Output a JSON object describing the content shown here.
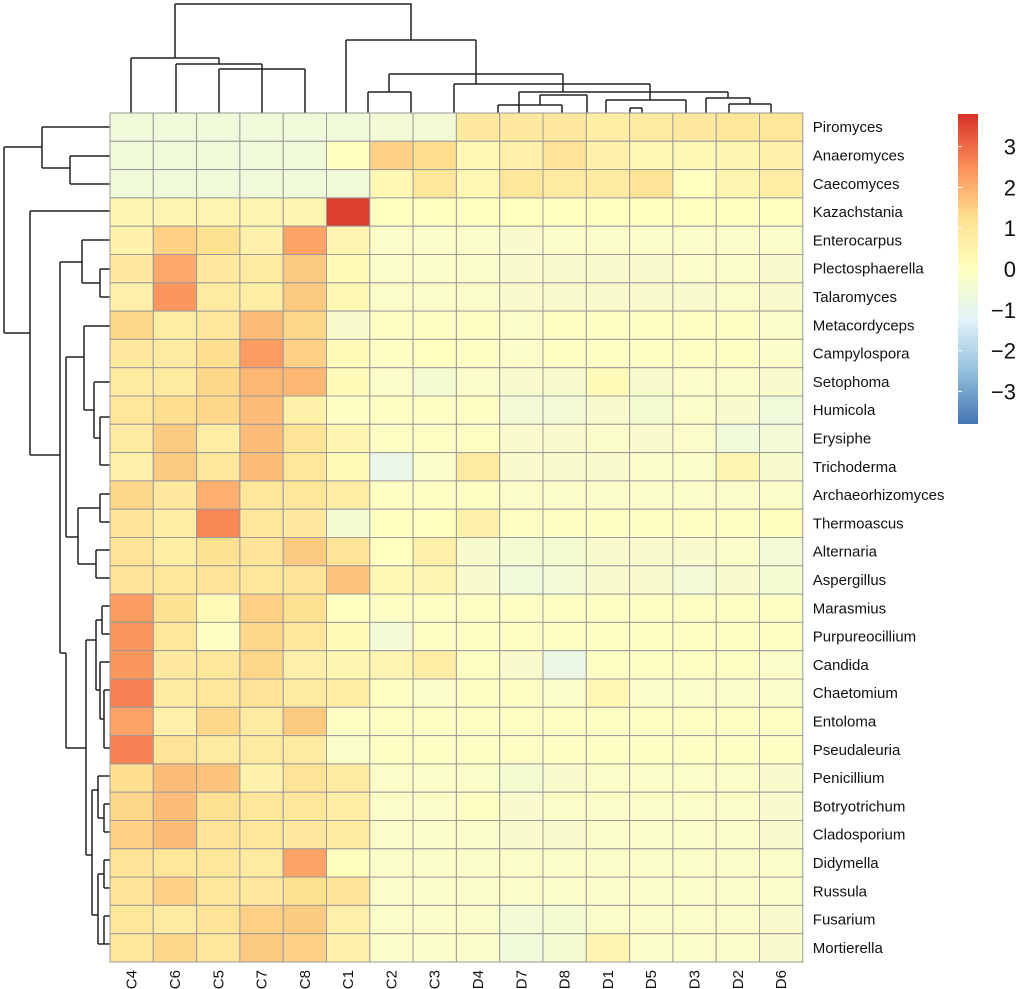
{
  "chart_data": {
    "type": "heatmap",
    "title": "",
    "columns": [
      "C4",
      "C6",
      "C5",
      "C7",
      "C8",
      "C1",
      "C2",
      "C3",
      "D4",
      "D7",
      "D8",
      "D1",
      "D5",
      "D3",
      "D2",
      "D6"
    ],
    "rows": [
      "Piromyces",
      "Anaeromyces",
      "Caecomyces",
      "Kazachstania",
      "Enterocarpus",
      "Plectosphaerella",
      "Talaromyces",
      "Metacordyceps",
      "Campylospora",
      "Setophoma",
      "Humicola",
      "Erysiphe",
      "Trichoderma",
      "Archaeorhizomyces",
      "Thermoascus",
      "Alternaria",
      "Aspergillus",
      "Marasmius",
      "Purpureocillium",
      "Candida",
      "Chaetomium",
      "Entoloma",
      "Pseudaleuria",
      "Penicillium",
      "Botryotrichum",
      "Cladosporium",
      "Didymella",
      "Russula",
      "Fusarium",
      "Mortierella"
    ],
    "values": [
      [
        -0.6,
        -0.6,
        -0.6,
        -0.6,
        -0.6,
        -0.6,
        -0.5,
        -0.5,
        0.9,
        0.9,
        0.9,
        0.7,
        0.8,
        0.9,
        1.0,
        1.0
      ],
      [
        -0.6,
        -0.6,
        -0.6,
        -0.6,
        -0.6,
        0.0,
        1.5,
        1.3,
        0.3,
        0.6,
        1.1,
        0.5,
        0.3,
        0.3,
        0.4,
        0.5
      ],
      [
        -0.6,
        -0.6,
        -0.6,
        -0.6,
        -0.6,
        -0.6,
        0.3,
        1.0,
        0.3,
        1.0,
        0.8,
        0.8,
        1.1,
        0.0,
        0.4,
        0.7
      ],
      [
        0.4,
        0.4,
        0.4,
        0.4,
        0.4,
        3.6,
        0.0,
        0.0,
        0.0,
        0.0,
        0.0,
        0.0,
        0.0,
        0.0,
        0.0,
        0.0
      ],
      [
        0.5,
        1.5,
        1.2,
        0.6,
        2.2,
        0.4,
        -0.2,
        -0.2,
        -0.2,
        -0.3,
        -0.2,
        -0.2,
        -0.2,
        -0.2,
        -0.2,
        -0.2
      ],
      [
        0.9,
        2.1,
        0.9,
        0.8,
        1.6,
        0.2,
        -0.2,
        -0.2,
        -0.2,
        -0.3,
        -0.3,
        -0.3,
        -0.3,
        -0.2,
        -0.2,
        -0.3
      ],
      [
        0.6,
        2.4,
        0.8,
        0.7,
        1.6,
        0.3,
        -0.2,
        -0.2,
        -0.2,
        -0.3,
        -0.3,
        -0.3,
        -0.3,
        -0.3,
        -0.2,
        -0.3
      ],
      [
        1.4,
        0.7,
        1.0,
        1.8,
        1.4,
        -0.3,
        -0.1,
        -0.1,
        -0.1,
        -0.2,
        -0.1,
        -0.1,
        -0.1,
        -0.1,
        -0.1,
        -0.2
      ],
      [
        0.9,
        0.8,
        1.3,
        2.3,
        1.5,
        0.2,
        -0.1,
        0.0,
        -0.1,
        -0.2,
        -0.1,
        -0.1,
        -0.1,
        -0.1,
        -0.1,
        -0.2
      ],
      [
        0.8,
        0.8,
        1.4,
        1.9,
        1.9,
        0.2,
        -0.2,
        -0.4,
        -0.2,
        -0.3,
        -0.3,
        0.2,
        -0.3,
        -0.2,
        -0.2,
        -0.3
      ],
      [
        1.0,
        1.3,
        1.4,
        1.8,
        0.5,
        -0.1,
        -0.1,
        -0.1,
        -0.1,
        -0.5,
        -0.5,
        -0.3,
        -0.4,
        -0.2,
        -0.3,
        -0.6
      ],
      [
        0.8,
        1.6,
        0.7,
        1.8,
        1.1,
        0.4,
        -0.1,
        -0.1,
        -0.1,
        -0.3,
        -0.3,
        -0.2,
        -0.3,
        -0.2,
        -0.6,
        -0.5
      ],
      [
        0.6,
        1.6,
        1.0,
        1.8,
        1.0,
        0.2,
        -0.9,
        -0.2,
        0.8,
        -0.3,
        -0.3,
        -0.3,
        -0.2,
        -0.2,
        0.4,
        -0.3
      ],
      [
        1.4,
        0.9,
        2.0,
        1.0,
        1.0,
        0.7,
        -0.1,
        -0.1,
        -0.1,
        -0.2,
        -0.2,
        -0.2,
        -0.2,
        -0.2,
        -0.2,
        -0.2
      ],
      [
        1.1,
        0.7,
        2.6,
        1.0,
        0.9,
        -0.4,
        0.0,
        0.0,
        0.5,
        -0.1,
        -0.1,
        -0.1,
        -0.1,
        -0.1,
        -0.1,
        0.1
      ],
      [
        1.1,
        0.7,
        1.2,
        1.1,
        1.6,
        1.1,
        0.0,
        0.6,
        -0.3,
        -0.4,
        -0.4,
        -0.3,
        -0.3,
        -0.3,
        -0.2,
        -0.5
      ],
      [
        1.1,
        1.0,
        1.1,
        1.0,
        1.1,
        1.7,
        0.3,
        0.4,
        -0.3,
        -0.6,
        -0.5,
        -0.3,
        -0.3,
        -0.5,
        -0.3,
        -0.4
      ],
      [
        2.3,
        1.2,
        0.2,
        1.5,
        1.2,
        0.0,
        -0.1,
        -0.1,
        -0.1,
        -0.1,
        -0.1,
        -0.1,
        -0.1,
        -0.1,
        -0.1,
        -0.1
      ],
      [
        2.4,
        1.0,
        -0.1,
        1.4,
        1.0,
        0.2,
        -0.5,
        -0.1,
        -0.1,
        -0.1,
        -0.1,
        -0.1,
        -0.1,
        -0.1,
        -0.1,
        -0.1
      ],
      [
        2.4,
        0.9,
        1.0,
        1.4,
        0.6,
        0.4,
        0.4,
        0.7,
        -0.1,
        -0.3,
        -0.8,
        -0.1,
        -0.1,
        -0.1,
        -0.1,
        -0.2
      ],
      [
        2.7,
        0.8,
        1.0,
        1.1,
        0.8,
        0.7,
        -0.1,
        -0.2,
        -0.1,
        -0.1,
        -0.2,
        0.3,
        -0.2,
        -0.2,
        -0.2,
        -0.2
      ],
      [
        2.2,
        0.6,
        1.4,
        0.8,
        1.6,
        -0.1,
        -0.1,
        -0.1,
        -0.1,
        -0.1,
        -0.1,
        -0.1,
        -0.1,
        -0.1,
        -0.1,
        -0.1
      ],
      [
        2.7,
        1.1,
        0.8,
        0.8,
        0.8,
        -0.2,
        -0.1,
        -0.1,
        -0.1,
        -0.1,
        -0.1,
        -0.1,
        -0.1,
        -0.1,
        -0.1,
        -0.1
      ],
      [
        1.3,
        1.8,
        1.7,
        0.5,
        1.1,
        0.8,
        -0.2,
        -0.2,
        -0.2,
        -0.4,
        -0.3,
        -0.2,
        -0.2,
        -0.2,
        -0.2,
        -0.3
      ],
      [
        1.4,
        1.8,
        1.2,
        1.0,
        1.0,
        0.7,
        -0.2,
        -0.2,
        -0.1,
        -0.3,
        -0.2,
        -0.2,
        -0.2,
        -0.2,
        -0.2,
        -0.3
      ],
      [
        1.5,
        1.8,
        1.1,
        1.0,
        0.9,
        0.8,
        -0.2,
        -0.2,
        -0.2,
        -0.3,
        -0.3,
        -0.2,
        -0.2,
        -0.2,
        -0.2,
        -0.3
      ],
      [
        1.1,
        1.0,
        1.0,
        0.8,
        2.2,
        0.1,
        -0.2,
        -0.2,
        -0.2,
        -0.2,
        -0.2,
        -0.2,
        -0.2,
        -0.2,
        -0.2,
        -0.2
      ],
      [
        1.1,
        1.5,
        1.0,
        0.9,
        1.2,
        1.1,
        -0.2,
        -0.2,
        -0.2,
        -0.2,
        -0.2,
        -0.2,
        -0.2,
        -0.2,
        -0.2,
        -0.2
      ],
      [
        1.0,
        0.8,
        1.1,
        1.5,
        1.6,
        0.6,
        -0.2,
        -0.2,
        -0.2,
        -0.5,
        -0.4,
        -0.2,
        -0.2,
        -0.2,
        -0.2,
        -0.3
      ],
      [
        1.0,
        1.4,
        1.0,
        1.6,
        1.5,
        0.5,
        -0.2,
        -0.2,
        -0.2,
        -0.6,
        -0.4,
        0.4,
        -0.2,
        -0.2,
        -0.2,
        -0.3
      ]
    ],
    "legend": {
      "ticks": [
        3,
        2,
        1,
        0,
        -1,
        -2,
        -3
      ],
      "tick_labels": [
        "3",
        "2",
        "1",
        "0",
        "−1",
        "−2",
        "−3"
      ],
      "range": [
        -3.8,
        3.8
      ],
      "colors": [
        "#4575b4",
        "#91bfdb",
        "#e0f3f8",
        "#ffffbf",
        "#fee090",
        "#fc8d59",
        "#d73027"
      ],
      "placement": "right"
    },
    "dendrogram_columns": true,
    "dendrogram_rows": true,
    "grid": true
  }
}
